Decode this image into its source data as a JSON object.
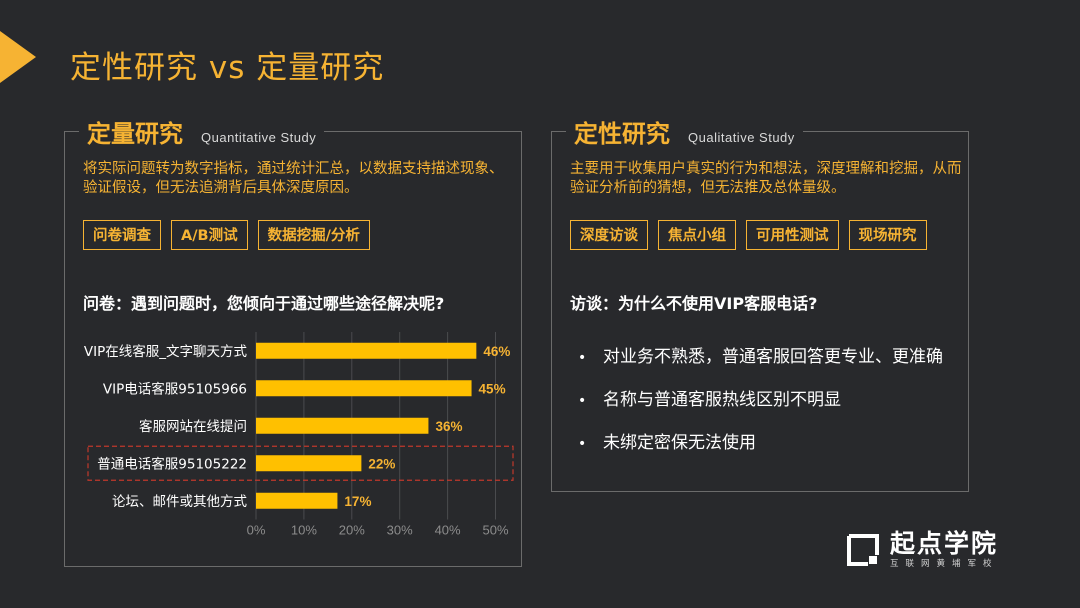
{
  "page": {
    "title": "定性研究 vs 定量研究"
  },
  "quant": {
    "title_cn": "定量研究",
    "title_en": "Quantitative Study",
    "description": "将实际问题转为数字指标，通过统计汇总，以数据支持描述现象、验证假设，但无法追溯背后具体深度原因。",
    "tags": [
      "问卷调查",
      "A/B测试",
      "数据挖掘/分析"
    ],
    "question": "问卷：遇到问题时，您倾向于通过哪些途径解决呢?"
  },
  "qual": {
    "title_cn": "定性研究",
    "title_en": "Qualitative Study",
    "description": "主要用于收集用户真实的行为和想法，深度理解和挖掘，从而验证分析前的猜想，但无法推及总体量级。",
    "tags": [
      "深度访谈",
      "焦点小组",
      "可用性测试",
      "现场研究"
    ],
    "question": "访谈：为什么不使用VIP客服电话?",
    "bullet_symbol": "•",
    "bullets": [
      "对业务不熟悉，普通客服回答更专业、更准确",
      "名称与普通客服热线区别不明显",
      "未绑定密保无法使用"
    ]
  },
  "chart_data": {
    "type": "bar",
    "orientation": "horizontal",
    "categories": [
      "VIP在线客服_文字聊天方式",
      "VIP电话客服95105966",
      "客服网站在线提问",
      "普通电话客服95105222",
      "论坛、邮件或其他方式"
    ],
    "values": [
      46,
      45,
      36,
      22,
      17
    ],
    "value_labels": [
      "46%",
      "45%",
      "36%",
      "22%",
      "17%"
    ],
    "xlim": [
      0,
      50
    ],
    "xticks": [
      0,
      10,
      20,
      30,
      40,
      50
    ],
    "xtick_labels": [
      "0%",
      "10%",
      "20%",
      "30%",
      "40%",
      "50%"
    ],
    "highlighted_category": "普通电话客服95105222",
    "grid": true,
    "bar_color": "#ffc000",
    "label_color": "#f6b333",
    "highlight_color": "#c0392b"
  },
  "logo": {
    "name": "起点学院",
    "subtitle": "互联网黄埔军校"
  }
}
